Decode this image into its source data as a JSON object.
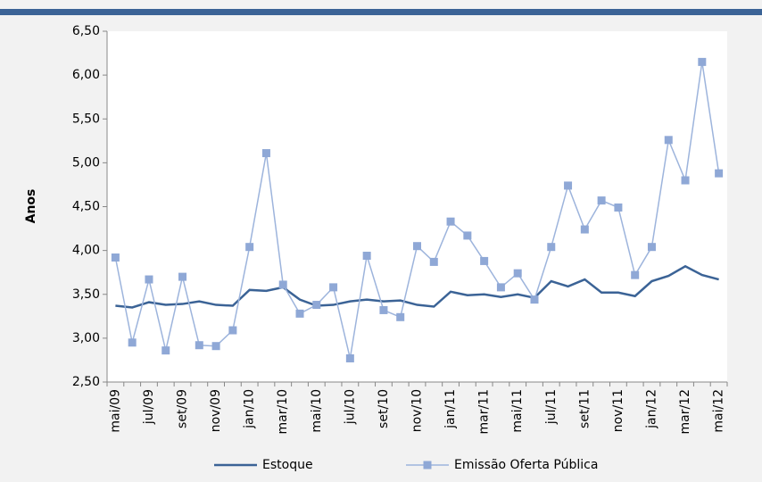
{
  "chart_data": {
    "type": "line",
    "y_label": "Anos",
    "categories": [
      "mai/09",
      null,
      "jul/09",
      null,
      "set/09",
      null,
      "nov/09",
      null,
      "jan/10",
      null,
      "mar/10",
      null,
      "mai/10",
      null,
      "jul/10",
      null,
      "set/10",
      null,
      "nov/10",
      null,
      "jan/11",
      null,
      "mar/11",
      null,
      "mai/11",
      null,
      "jul/11",
      null,
      "set/11",
      null,
      "nov/11",
      null,
      "jan/12",
      null,
      "mar/12",
      null,
      "mai/12"
    ],
    "series": [
      {
        "name": "Estoque",
        "color": "#3b6396",
        "values": [
          3.37,
          3.35,
          3.41,
          3.38,
          3.39,
          3.42,
          3.38,
          3.37,
          3.55,
          3.54,
          3.58,
          3.44,
          3.37,
          3.38,
          3.42,
          3.44,
          3.42,
          3.43,
          3.38,
          3.36,
          3.53,
          3.49,
          3.5,
          3.47,
          3.5,
          3.46,
          3.65,
          3.59,
          3.67,
          3.52,
          3.52,
          3.48,
          3.65,
          3.71,
          3.82,
          3.72,
          3.67
        ]
      },
      {
        "name": "Emissão Oferta Pública",
        "color": "#9db4dc",
        "marker_color": "#8fa8d6",
        "values": [
          3.92,
          2.95,
          3.67,
          2.86,
          3.7,
          2.92,
          2.91,
          3.09,
          4.04,
          5.11,
          3.61,
          3.28,
          3.38,
          3.58,
          2.77,
          3.94,
          3.32,
          3.24,
          4.05,
          3.87,
          4.33,
          4.17,
          3.88,
          3.58,
          3.74,
          3.44,
          4.04,
          4.74,
          4.24,
          4.57,
          4.49,
          3.72,
          4.04,
          5.26,
          4.8,
          6.15,
          4.88
        ]
      }
    ],
    "ylim": [
      2.5,
      6.5
    ],
    "yticks": [
      {
        "value": 2.5,
        "label": "2,50"
      },
      {
        "value": 3.0,
        "label": "3,00"
      },
      {
        "value": 3.5,
        "label": "3,50"
      },
      {
        "value": 4.0,
        "label": "4,00"
      },
      {
        "value": 4.5,
        "label": "4,50"
      },
      {
        "value": 5.0,
        "label": "5,00"
      },
      {
        "value": 5.5,
        "label": "5,50"
      },
      {
        "value": 6.0,
        "label": "6,00"
      },
      {
        "value": 6.5,
        "label": "6,50"
      }
    ],
    "grid": false,
    "legend": "bottom"
  }
}
